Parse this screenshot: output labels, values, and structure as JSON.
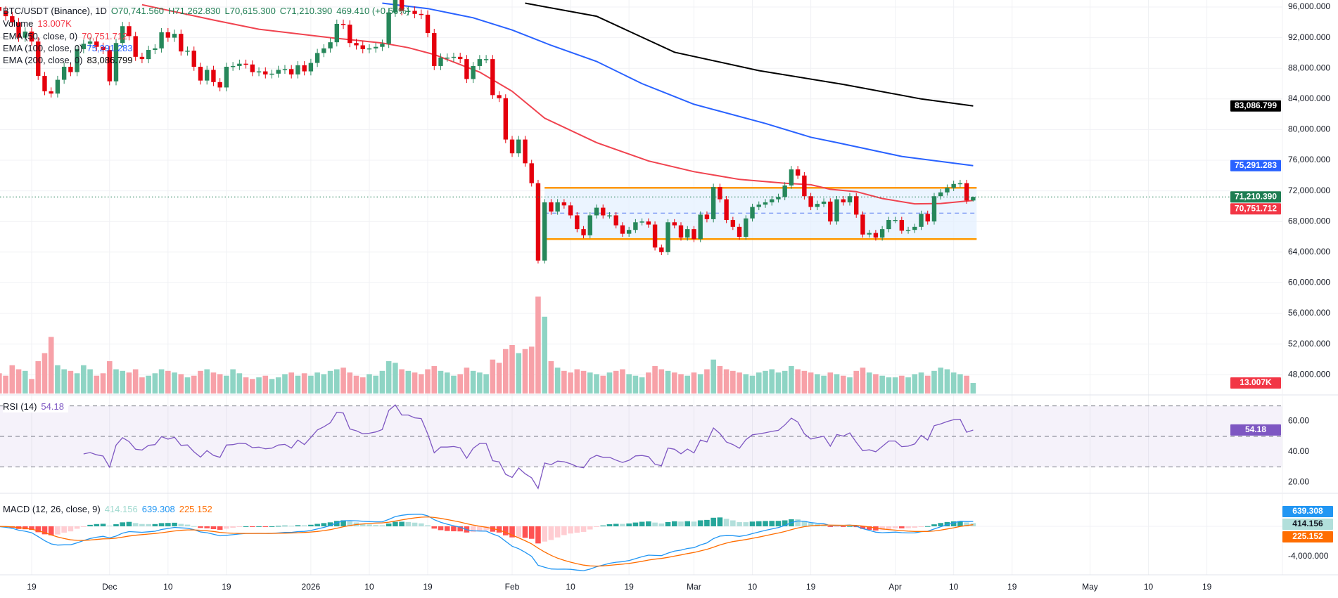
{
  "legend": {
    "symbol": "BTC/USDT (Binance), 1D",
    "open": "O70,741.560",
    "high": "H71,262.830",
    "low": "L70,615.300",
    "close": "C71,210.390",
    "change": "469.410 (+0.66%)",
    "volume_label": "Volume",
    "volume_value": "13.007K",
    "ema50_label": "EMA (50, close, 0)",
    "ema50_value": "70,751.712",
    "ema100_label": "EMA (100, close, 0)",
    "ema100_value": "75,291.283",
    "ema200_label": "EMA (200, close, 0)",
    "ema200_value": "83,086.799",
    "rsi_label": "RSI (14)",
    "rsi_value": "54.18",
    "macd_label": "MACD (12, 26, close, 9)",
    "macd_hist_value": "414.156",
    "macd_value": "639.308",
    "macd_signal_value": "225.152"
  },
  "price_axis": {
    "ticks": [
      "96,000.000",
      "92,000.000",
      "88,000.000",
      "84,000.000",
      "80,000.000",
      "76,000.000",
      "72,000.000",
      "68,000.000",
      "64,000.000",
      "60,000.000",
      "56,000.000",
      "52,000.000",
      "48,000.000"
    ],
    "tick_values": [
      96000,
      92000,
      88000,
      84000,
      80000,
      76000,
      72000,
      68000,
      64000,
      60000,
      56000,
      52000,
      48000
    ]
  },
  "rsi_axis": {
    "ticks": [
      "60.00",
      "40.00",
      "20.00"
    ],
    "tick_values": [
      60,
      40,
      20
    ],
    "bands": [
      70,
      50,
      30
    ]
  },
  "macd_axis": {
    "ticks": [
      "-4,000.000"
    ],
    "tick_values": [
      -4000
    ]
  },
  "badges": {
    "ema200": {
      "text": "83,086.799",
      "value": 83086.799,
      "color": "#000000"
    },
    "ema100": {
      "text": "75,291.283",
      "value": 75291.283,
      "color": "#2962ff"
    },
    "last_price": {
      "text": "71,210.390",
      "value": 71210.39,
      "color": "#1e7d52"
    },
    "ema50": {
      "text": "70,751.712",
      "value": 70751.712,
      "color": "#f23645"
    },
    "volume": {
      "text": "13.007K",
      "color": "#f23645"
    },
    "rsi": {
      "text": "54.18",
      "color": "#7e57c2"
    },
    "macd": {
      "text": "639.308",
      "color": "#2196f3"
    },
    "macd_hist": {
      "text": "414.156",
      "color": "#b2dfdb"
    },
    "macd_signal": {
      "text": "225.152",
      "color": "#ff6d00"
    }
  },
  "time_axis": {
    "labels": [
      {
        "text": "19",
        "date": "2025-11-19"
      },
      {
        "text": "Dec",
        "date": "2025-12-01"
      },
      {
        "text": "10",
        "date": "2025-12-10"
      },
      {
        "text": "19",
        "date": "2025-12-19"
      },
      {
        "text": "2026",
        "date": "2026-01-01"
      },
      {
        "text": "10",
        "date": "2026-01-10"
      },
      {
        "text": "19",
        "date": "2026-01-19"
      },
      {
        "text": "Feb",
        "date": "2026-02-01"
      },
      {
        "text": "10",
        "date": "2026-02-10"
      },
      {
        "text": "19",
        "date": "2026-02-19"
      },
      {
        "text": "Mar",
        "date": "2026-03-01"
      },
      {
        "text": "10",
        "date": "2026-03-10"
      },
      {
        "text": "19",
        "date": "2026-03-19"
      },
      {
        "text": "Apr",
        "date": "2026-04-01"
      },
      {
        "text": "10",
        "date": "2026-04-10"
      },
      {
        "text": "19",
        "date": "2026-04-19"
      },
      {
        "text": "May",
        "date": "2026-05-01"
      },
      {
        "text": "10",
        "date": "2026-05-10"
      },
      {
        "text": "19",
        "date": "2026-05-19"
      }
    ]
  },
  "colors": {
    "up": "#26875a",
    "down": "#e5000d",
    "volume_up": "#8ed4c4",
    "volume_down": "#f7a1a8",
    "ema50": "#f0434f",
    "ema100": "#2962ff",
    "ema200": "#000000",
    "rsi": "#7e57c2",
    "macd": "#2196f3",
    "signal": "#ff6d00",
    "range_border": "#ff9800",
    "range_fill": "#e3efff",
    "range_mid": "#5b7cf0"
  },
  "chart_data": {
    "type": "candlestick",
    "title": "BTC/USDT (Binance), 1D",
    "start_date": "2025-11-13",
    "ylim": [
      46000,
      97000
    ],
    "grid": true,
    "last_candle": {
      "open": 70741.56,
      "high": 71262.83,
      "low": 70615.3,
      "close": 71210.39
    },
    "closes": [
      96000,
      95500,
      94800,
      94000,
      92000,
      92800,
      91500,
      87000,
      85000,
      84700,
      86500,
      88200,
      87500,
      90500,
      91200,
      91500,
      90800,
      90400,
      86300,
      91300,
      93500,
      92200,
      89500,
      89200,
      90400,
      90600,
      92700,
      92000,
      92500,
      90200,
      90300,
      88200,
      86400,
      87800,
      86200,
      85500,
      88200,
      88300,
      88600,
      88500,
      87500,
      87600,
      87200,
      87300,
      87800,
      87900,
      87200,
      88400,
      87600,
      88700,
      90000,
      90600,
      91400,
      93800,
      93700,
      91300,
      91000,
      90500,
      90600,
      90800,
      91200,
      95300,
      97000,
      95500,
      95500,
      95100,
      95000,
      92600,
      88300,
      89400,
      89400,
      89500,
      89200,
      86600,
      88300,
      89200,
      89200,
      84500,
      84100,
      78700,
      76900,
      78700,
      75600,
      73000,
      62900,
      70500,
      69300,
      70500,
      70100,
      68800,
      67000,
      66200,
      68800,
      69800,
      68800,
      68800,
      67500,
      66400,
      66900,
      67900,
      68000,
      67600,
      64600,
      64000,
      67900,
      67500,
      65900,
      67000,
      65700,
      68900,
      68300,
      72500,
      70900,
      68200,
      67300,
      66000,
      68400,
      69900,
      70200,
      70500,
      70900,
      71200,
      72700,
      74800,
      74000,
      71300,
      69900,
      70300,
      70600,
      68000,
      70900,
      70500,
      71300,
      68900,
      66300,
      66500,
      65900,
      67000,
      68200,
      68200,
      66800,
      66900,
      67300,
      69000,
      68000,
      71300,
      71800,
      72400,
      72900,
      73000,
      70741.56,
      71210.39
    ],
    "volumes_k": [
      30,
      25,
      22,
      35,
      30,
      28,
      18,
      40,
      50,
      70,
      35,
      30,
      28,
      25,
      35,
      30,
      22,
      25,
      40,
      30,
      28,
      26,
      30,
      20,
      22,
      25,
      30,
      28,
      26,
      24,
      20,
      22,
      28,
      30,
      26,
      24,
      22,
      30,
      25,
      20,
      18,
      20,
      22,
      18,
      20,
      24,
      26,
      22,
      25,
      22,
      26,
      24,
      28,
      30,
      32,
      26,
      22,
      20,
      24,
      22,
      28,
      40,
      38,
      30,
      28,
      26,
      24,
      30,
      34,
      28,
      26,
      22,
      24,
      32,
      28,
      26,
      24,
      42,
      38,
      55,
      60,
      50,
      55,
      58,
      120,
      95,
      40,
      32,
      28,
      26,
      30,
      28,
      26,
      24,
      22,
      26,
      28,
      30,
      24,
      22,
      20,
      26,
      34,
      30,
      28,
      26,
      24,
      22,
      26,
      24,
      30,
      42,
      34,
      30,
      28,
      26,
      24,
      22,
      26,
      28,
      30,
      26,
      28,
      34,
      30,
      28,
      26,
      24,
      22,
      26,
      24,
      22,
      20,
      28,
      32,
      26,
      24,
      22,
      20,
      20,
      22,
      20,
      24,
      26,
      22,
      28,
      32,
      30,
      26,
      24,
      22,
      13.007
    ],
    "ema_lines": [
      {
        "name": "EMA (50, close, 0)",
        "color_key": "ema50",
        "points": [
          [
            "2025-12-06",
            96300
          ],
          [
            "2025-12-17",
            94300
          ],
          [
            "2025-12-24",
            93100
          ],
          [
            "2026-01-04",
            92000
          ],
          [
            "2026-01-12",
            91300
          ],
          [
            "2026-01-16",
            90700
          ],
          [
            "2026-01-20",
            89800
          ],
          [
            "2026-01-27",
            87500
          ],
          [
            "2026-02-01",
            85000
          ],
          [
            "2026-02-06",
            81500
          ],
          [
            "2026-02-14",
            78300
          ],
          [
            "2026-02-22",
            75900
          ],
          [
            "2026-03-01",
            74500
          ],
          [
            "2026-03-08",
            73500
          ],
          [
            "2026-03-15",
            73000
          ],
          [
            "2026-03-19",
            72800
          ],
          [
            "2026-03-22",
            72200
          ],
          [
            "2026-03-26",
            71900
          ],
          [
            "2026-03-30",
            71000
          ],
          [
            "2026-04-04",
            70300
          ],
          [
            "2026-04-08",
            70350
          ],
          [
            "2026-04-13",
            70751.712
          ]
        ]
      },
      {
        "name": "EMA (100, close, 0)",
        "color_key": "ema100",
        "points": [
          [
            "2026-01-12",
            96500
          ],
          [
            "2026-01-19",
            95800
          ],
          [
            "2026-01-26",
            94600
          ],
          [
            "2026-02-01",
            93000
          ],
          [
            "2026-02-07",
            91000
          ],
          [
            "2026-02-14",
            88900
          ],
          [
            "2026-02-21",
            86000
          ],
          [
            "2026-03-01",
            83300
          ],
          [
            "2026-03-12",
            80800
          ],
          [
            "2026-03-19",
            79000
          ],
          [
            "2026-03-23",
            78300
          ],
          [
            "2026-04-02",
            76500
          ],
          [
            "2026-04-13",
            75291.283
          ]
        ]
      },
      {
        "name": "EMA (200, close, 0)",
        "color_key": "ema200",
        "points": [
          [
            "2026-02-03",
            96500
          ],
          [
            "2026-02-14",
            94800
          ],
          [
            "2026-02-26",
            90100
          ],
          [
            "2026-03-11",
            87700
          ],
          [
            "2026-03-24",
            85900
          ],
          [
            "2026-04-05",
            84000
          ],
          [
            "2026-04-13",
            83086.799
          ]
        ]
      }
    ],
    "range_box": {
      "start": "2026-02-06",
      "end": "2026-04-13",
      "top": 72400,
      "bottom": 65700,
      "mid": 69100
    }
  }
}
